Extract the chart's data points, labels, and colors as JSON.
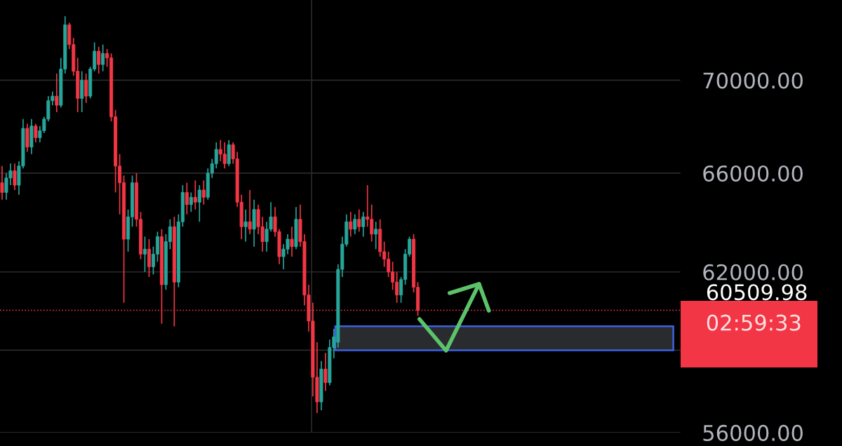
{
  "chart_data": {
    "type": "candlestick",
    "categories": [
      null,
      null,
      null,
      null,
      null,
      null,
      null,
      null,
      null,
      null,
      null,
      null,
      null,
      null,
      null,
      null,
      null,
      null,
      null,
      null,
      null,
      null,
      null,
      null,
      null,
      null,
      null,
      null,
      null,
      null,
      null,
      null,
      null,
      null,
      null,
      null,
      null,
      null,
      null,
      null,
      null,
      null,
      null,
      null,
      null,
      null,
      null,
      null,
      null,
      null,
      null,
      null,
      null,
      null,
      null,
      null,
      null,
      null,
      null,
      null,
      null,
      null,
      null,
      null,
      null,
      null,
      null,
      null,
      null,
      null,
      null,
      null,
      null,
      null,
      null,
      null,
      null,
      null,
      null,
      null,
      null,
      null,
      null,
      null,
      null,
      null,
      null,
      null,
      null,
      null,
      null,
      null,
      null,
      null,
      null,
      null,
      null,
      null,
      null,
      null,
      null,
      null,
      null,
      null,
      null,
      null,
      null,
      null,
      null,
      null,
      null,
      null,
      null,
      null,
      null,
      null,
      null,
      null,
      null,
      null,
      null,
      null,
      null,
      null,
      null,
      null,
      null,
      null,
      null,
      null,
      null,
      null,
      null,
      null,
      null,
      null,
      null,
      null,
      null,
      null,
      null,
      null,
      null,
      null,
      null,
      null,
      null,
      null,
      null,
      null,
      null,
      null,
      null,
      null,
      null,
      null,
      null,
      null,
      null,
      null,
      null,
      null
    ],
    "ohlc": [
      [
        65600,
        66300,
        64900,
        65200
      ],
      [
        65200,
        66000,
        64900,
        65800
      ],
      [
        65800,
        66400,
        65500,
        66100
      ],
      [
        66100,
        66400,
        65300,
        65500
      ],
      [
        65500,
        66500,
        65100,
        66300
      ],
      [
        66300,
        68300,
        66200,
        67900
      ],
      [
        67900,
        68100,
        66900,
        67100
      ],
      [
        67100,
        68300,
        66800,
        68000
      ],
      [
        68000,
        68100,
        67300,
        67500
      ],
      [
        67500,
        68000,
        67300,
        67800
      ],
      [
        67800,
        68400,
        67700,
        68300
      ],
      [
        68300,
        69300,
        68200,
        69100
      ],
      [
        69100,
        69500,
        68900,
        69300
      ],
      [
        69300,
        70300,
        68600,
        68900
      ],
      [
        68900,
        71000,
        68800,
        70500
      ],
      [
        70500,
        72900,
        70300,
        72500
      ],
      [
        72500,
        72600,
        71400,
        71600
      ],
      [
        71600,
        71900,
        70200,
        70400
      ],
      [
        70400,
        71000,
        68600,
        69200
      ],
      [
        69200,
        70400,
        68600,
        70000
      ],
      [
        70000,
        70300,
        69000,
        69300
      ],
      [
        69300,
        70600,
        69200,
        70500
      ],
      [
        70500,
        71700,
        70400,
        71300
      ],
      [
        71300,
        71500,
        70300,
        70700
      ],
      [
        70700,
        71600,
        70400,
        71200
      ],
      [
        71200,
        71400,
        70600,
        71000
      ],
      [
        71000,
        71200,
        68200,
        68400
      ],
      [
        68400,
        68700,
        65200,
        66300
      ],
      [
        66300,
        66800,
        64300,
        65600
      ],
      [
        65600,
        65900,
        60800,
        63300
      ],
      [
        63300,
        64500,
        62800,
        64200
      ],
      [
        64200,
        65900,
        63800,
        65600
      ],
      [
        65600,
        66000,
        63800,
        64100
      ],
      [
        64100,
        64400,
        62500,
        62700
      ],
      [
        62700,
        63400,
        62000,
        62900
      ],
      [
        62900,
        63300,
        61800,
        62200
      ],
      [
        62200,
        63000,
        61900,
        62700
      ],
      [
        62700,
        63600,
        62400,
        63400
      ],
      [
        63400,
        63700,
        60000,
        61500
      ],
      [
        61500,
        63500,
        61300,
        63200
      ],
      [
        63200,
        64100,
        62900,
        63800
      ],
      [
        63800,
        64200,
        59900,
        61600
      ],
      [
        61600,
        64300,
        61400,
        64000
      ],
      [
        64000,
        65500,
        63800,
        65200
      ],
      [
        65200,
        65600,
        64300,
        64700
      ],
      [
        64700,
        65200,
        64400,
        65000
      ],
      [
        65000,
        65700,
        64500,
        64800
      ],
      [
        64800,
        65500,
        64000,
        65300
      ],
      [
        65300,
        65700,
        64700,
        65000
      ],
      [
        65000,
        66200,
        64900,
        66000
      ],
      [
        66000,
        66600,
        65800,
        66400
      ],
      [
        66400,
        67300,
        66200,
        67000
      ],
      [
        67000,
        67400,
        66500,
        66800
      ],
      [
        66800,
        67300,
        66200,
        66400
      ],
      [
        66400,
        67400,
        66300,
        67200
      ],
      [
        67200,
        67300,
        66400,
        66600
      ],
      [
        66600,
        66900,
        64600,
        64800
      ],
      [
        64800,
        65100,
        63300,
        63800
      ],
      [
        63800,
        64500,
        63200,
        64000
      ],
      [
        64000,
        65300,
        63500,
        63700
      ],
      [
        63700,
        64900,
        63000,
        64500
      ],
      [
        64500,
        64700,
        63500,
        63800
      ],
      [
        63800,
        64200,
        62800,
        63200
      ],
      [
        63200,
        64000,
        62800,
        63700
      ],
      [
        63700,
        64800,
        63600,
        64200
      ],
      [
        64200,
        64600,
        63400,
        63600
      ],
      [
        63600,
        63700,
        62300,
        62600
      ],
      [
        62600,
        63100,
        62100,
        62900
      ],
      [
        62900,
        63500,
        62700,
        63300
      ],
      [
        63300,
        63800,
        62600,
        63000
      ],
      [
        63000,
        64600,
        62900,
        64100
      ],
      [
        64100,
        64700,
        63000,
        63200
      ],
      [
        63200,
        63500,
        60700,
        61100
      ],
      [
        61100,
        61500,
        59700,
        60100
      ],
      [
        60100,
        60800,
        57300,
        58000
      ],
      [
        58000,
        59300,
        56700,
        57100
      ],
      [
        57100,
        58600,
        56800,
        58300
      ],
      [
        58300,
        58900,
        57500,
        57800
      ],
      [
        57800,
        59400,
        57700,
        59100
      ],
      [
        59100,
        59800,
        58700,
        59500
      ],
      [
        59300,
        62300,
        59100,
        62100
      ],
      [
        62100,
        63400,
        61800,
        63100
      ],
      [
        63100,
        64300,
        63000,
        64000
      ],
      [
        64000,
        64400,
        63400,
        63700
      ],
      [
        63700,
        64300,
        63500,
        64100
      ],
      [
        64100,
        64500,
        63600,
        63800
      ],
      [
        63800,
        64400,
        63400,
        64200
      ],
      [
        64200,
        65500,
        63800,
        64100
      ],
      [
        64100,
        64700,
        63200,
        63500
      ],
      [
        63500,
        64000,
        62900,
        63700
      ],
      [
        63700,
        64100,
        62600,
        62800
      ],
      [
        62800,
        63200,
        62200,
        62500
      ],
      [
        62500,
        62800,
        61800,
        62000
      ],
      [
        62000,
        62400,
        61300,
        61600
      ],
      [
        61600,
        62000,
        60800,
        61100
      ],
      [
        61100,
        61800,
        60800,
        61700
      ],
      [
        61700,
        62900,
        61500,
        62700
      ],
      [
        62700,
        63400,
        62600,
        63300
      ],
      [
        63300,
        63500,
        61200,
        61400
      ],
      [
        61400,
        61600,
        60300,
        60509.98
      ],
      null,
      null,
      null,
      null,
      null,
      null,
      null,
      null,
      null,
      null,
      null,
      null,
      null,
      null,
      null,
      null,
      null,
      null,
      null,
      null,
      null,
      null,
      null,
      null,
      null,
      null,
      null,
      null,
      null,
      null,
      null,
      null,
      null,
      null,
      null,
      null,
      null,
      null,
      null,
      null,
      null,
      null,
      null,
      null,
      null,
      null,
      null,
      null,
      null,
      null,
      null,
      null,
      null,
      null,
      null,
      null,
      null,
      null,
      null,
      null,
      null,
      null
    ],
    "colors": [
      "#f23645",
      "#26a69a",
      "#26a69a",
      "#f23645",
      "#26a69a",
      "#26a69a",
      "#f23645",
      "#26a69a",
      "#f23645",
      "#26a69a",
      "#26a69a",
      "#26a69a",
      "#26a69a",
      "#f23645",
      "#26a69a",
      "#26a69a",
      "#f23645",
      "#f23645",
      "#f23645",
      "#26a69a",
      "#f23645",
      "#26a69a",
      "#26a69a",
      "#f23645",
      "#26a69a",
      "#f23645",
      "#f23645",
      "#f23645",
      "#f23645",
      "#f23645",
      "#26a69a",
      "#26a69a",
      "#f23645",
      "#f23645",
      "#26a69a",
      "#f23645",
      "#26a69a",
      "#26a69a",
      "#f23645",
      "#26a69a",
      "#26a69a",
      "#f23645",
      "#26a69a",
      "#26a69a",
      "#f23645",
      "#26a69a",
      "#f23645",
      "#26a69a",
      "#f23645",
      "#26a69a",
      "#26a69a",
      "#26a69a",
      "#f23645",
      "#f23645",
      "#26a69a",
      "#f23645",
      "#f23645",
      "#f23645",
      "#26a69a",
      "#f23645",
      "#26a69a",
      "#f23645",
      "#f23645",
      "#26a69a",
      "#26a69a",
      "#f23645",
      "#f23645",
      "#26a69a",
      "#26a69a",
      "#f23645",
      "#26a69a",
      "#f23645",
      "#f23645",
      "#f23645",
      "#f23645",
      "#f23645",
      "#26a69a",
      "#f23645",
      "#26a69a",
      "#26a69a",
      "#26a69a",
      "#26a69a",
      "#26a69a",
      "#f23645",
      "#26a69a",
      "#f23645",
      "#26a69a",
      "#f23645",
      "#f23645",
      "#26a69a",
      "#f23645",
      "#f23645",
      "#f23645",
      "#f23645",
      "#f23645",
      "#26a69a",
      "#26a69a",
      "#26a69a",
      "#f23645",
      "#f23645",
      null,
      null,
      null,
      null,
      null,
      null,
      null,
      null,
      null,
      null,
      null,
      null,
      null,
      null,
      null,
      null,
      null,
      null,
      null,
      null,
      null,
      null,
      null,
      null,
      null,
      null,
      null,
      null,
      null,
      null,
      null,
      null,
      null,
      null,
      null,
      null,
      null,
      null,
      null,
      null,
      null,
      null,
      null,
      null,
      null,
      null,
      null,
      null,
      null,
      null,
      null,
      null,
      null,
      null,
      null,
      null,
      null,
      null,
      null,
      null,
      null,
      null
    ],
    "log": "y",
    "ylim": [
      56000,
      73650
    ],
    "yticks": [
      {
        "value": 70000,
        "label": "70000.00"
      },
      {
        "value": 66000,
        "label": "66000.00"
      },
      {
        "value": 62000,
        "label": "62000.00"
      },
      {
        "value": 59000,
        "label": null
      },
      {
        "value": 56000,
        "label": "56000.00"
      }
    ],
    "tick_labels": "y",
    "grid": "y",
    "ref_lines": [
      {
        "axis": "y",
        "value": 60509.98,
        "label": "60509.98",
        "color": "#f23645",
        "line_style": "dotted"
      }
    ],
    "bands": [
      {
        "axis": "y",
        "from": 59000,
        "to": 59900,
        "color": "#2a2b2e"
      }
    ],
    "annotations": [
      "02:59:33"
    ]
  }
}
